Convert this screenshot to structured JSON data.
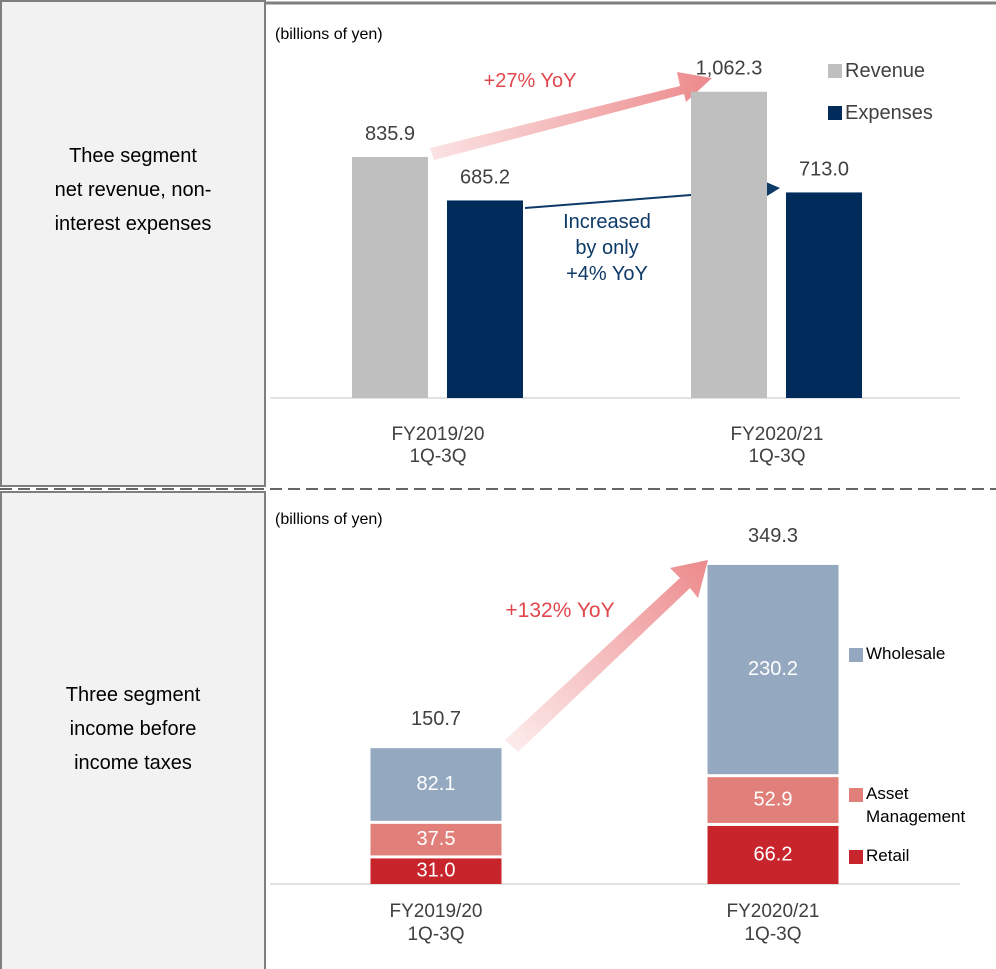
{
  "chart_data": [
    {
      "type": "bar",
      "label": "Thee segment\nnet revenue, non-\ninterest expenses",
      "subtitle": "(billions of yen)",
      "categories": [
        "FY2019/20\n1Q-3Q",
        "FY2020/21\n1Q-3Q"
      ],
      "series": [
        {
          "name": "Revenue",
          "color": "#bfbfbf",
          "values": [
            835.9,
            1062.3
          ],
          "value_labels": [
            "835.9",
            "1,062.3"
          ]
        },
        {
          "name": "Expenses",
          "color": "#002b5a",
          "values": [
            685.2,
            713.0
          ],
          "value_labels": [
            "685.2",
            "713.0"
          ]
        }
      ],
      "annotations": [
        "+27% YoY",
        "Increased\nby only\n+4% YoY"
      ]
    },
    {
      "type": "stacked_bar",
      "label": "Three segment\nincome before\nincome taxes",
      "subtitle": "(billions of yen)",
      "categories": [
        "FY2019/20\n1Q-3Q",
        "FY2020/21\n1Q-3Q"
      ],
      "series": [
        {
          "name": "Retail",
          "color": "#c8242b",
          "values": [
            31.0,
            66.2
          ],
          "value_labels": [
            "31.0",
            "66.2"
          ]
        },
        {
          "name": "Asset\nManagement",
          "color": "#e17f7b",
          "values": [
            37.5,
            52.9
          ]
        },
        {
          "name": "Wholesale",
          "color": "#94a9bf",
          "values": [
            82.1,
            230.2
          ]
        }
      ],
      "totals": [
        150.7,
        349.3
      ],
      "annotations": [
        "+132% YoY"
      ]
    }
  ]
}
